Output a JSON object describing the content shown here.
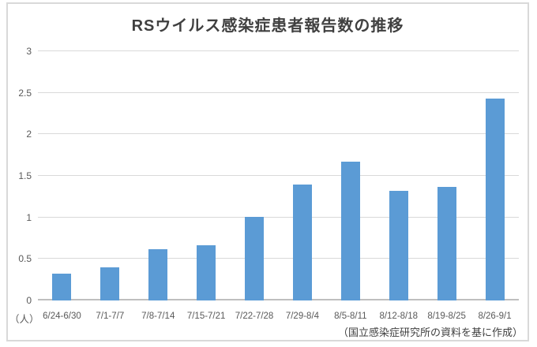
{
  "chart_data": {
    "type": "bar",
    "title": "RSウイルス感染症患者報告数の推移",
    "unit_label": "（人）",
    "categories": [
      "6/24-6/30",
      "7/1-7/7",
      "7/8-7/14",
      "7/15-7/21",
      "7/22-7/28",
      "7/29-8/4",
      "8/5-8/11",
      "8/12-8/18",
      "8/19-8/25",
      "8/26-9/1"
    ],
    "values": [
      0.32,
      0.4,
      0.62,
      0.66,
      1.01,
      1.4,
      1.67,
      1.32,
      1.37,
      2.43
    ],
    "ylim": [
      0,
      3
    ],
    "ytick_step": 0.5,
    "yticks": [
      "0",
      "0.5",
      "1",
      "1.5",
      "2",
      "2.5",
      "3"
    ],
    "grid": true,
    "legend": "none",
    "source_note": "（国立感染症研究所の資料を基に作成）",
    "colors": {
      "bar": "#5B9BD5",
      "gridline": "#D9D9D9",
      "axis_line": "#BFBFBF",
      "label": "#595959",
      "title": "#404040",
      "border": "#D9D9D9",
      "background": "#FFFFFF"
    }
  }
}
